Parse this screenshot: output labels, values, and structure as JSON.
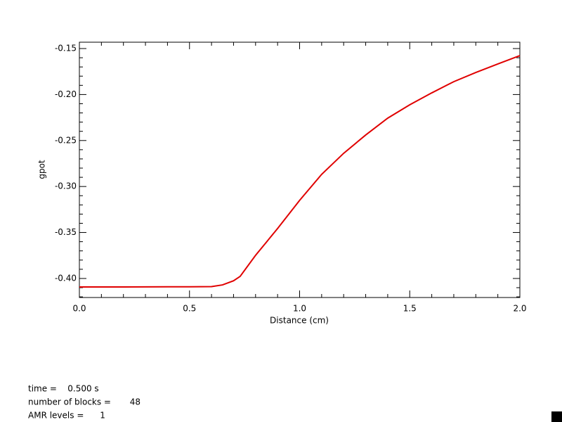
{
  "chart_data": {
    "type": "line",
    "x_label": "Distance (cm)",
    "y_label": "gpot",
    "x": [
      0.0,
      0.1,
      0.2,
      0.3,
      0.4,
      0.5,
      0.6,
      0.65,
      0.7,
      0.73,
      0.8,
      0.9,
      1.0,
      1.1,
      1.2,
      1.3,
      1.4,
      1.5,
      1.6,
      1.7,
      1.8,
      1.9,
      2.0
    ],
    "series": [
      {
        "color": "#e00000",
        "values": [
          -0.4092,
          -0.4092,
          -0.4092,
          -0.4091,
          -0.409,
          -0.409,
          -0.4088,
          -0.407,
          -0.4025,
          -0.3977,
          -0.3748,
          -0.3457,
          -0.3151,
          -0.2868,
          -0.2639,
          -0.244,
          -0.2257,
          -0.2112,
          -0.1982,
          -0.186,
          -0.176,
          -0.1668,
          -0.1577
        ]
      }
    ],
    "xlim": [
      0,
      2
    ],
    "xticks": [
      {
        "value": 0,
        "label": "0.0"
      },
      0.5,
      {
        "value": 1,
        "label": "1.0"
      },
      1.5,
      {
        "value": 2,
        "label": "2.0"
      }
    ],
    "ylim": [
      -0.4207,
      -0.1431
    ],
    "yticks": [
      {
        "value": -0.4,
        "label": "-0.40"
      },
      -0.35,
      {
        "value": -0.3,
        "label": "-0.30"
      },
      -0.25,
      {
        "value": -0.2,
        "label": "-0.20"
      },
      -0.15
    ],
    "annotations": [
      "time =    0.500 s",
      "number of blocks =       48",
      "AMR levels =      1"
    ]
  }
}
